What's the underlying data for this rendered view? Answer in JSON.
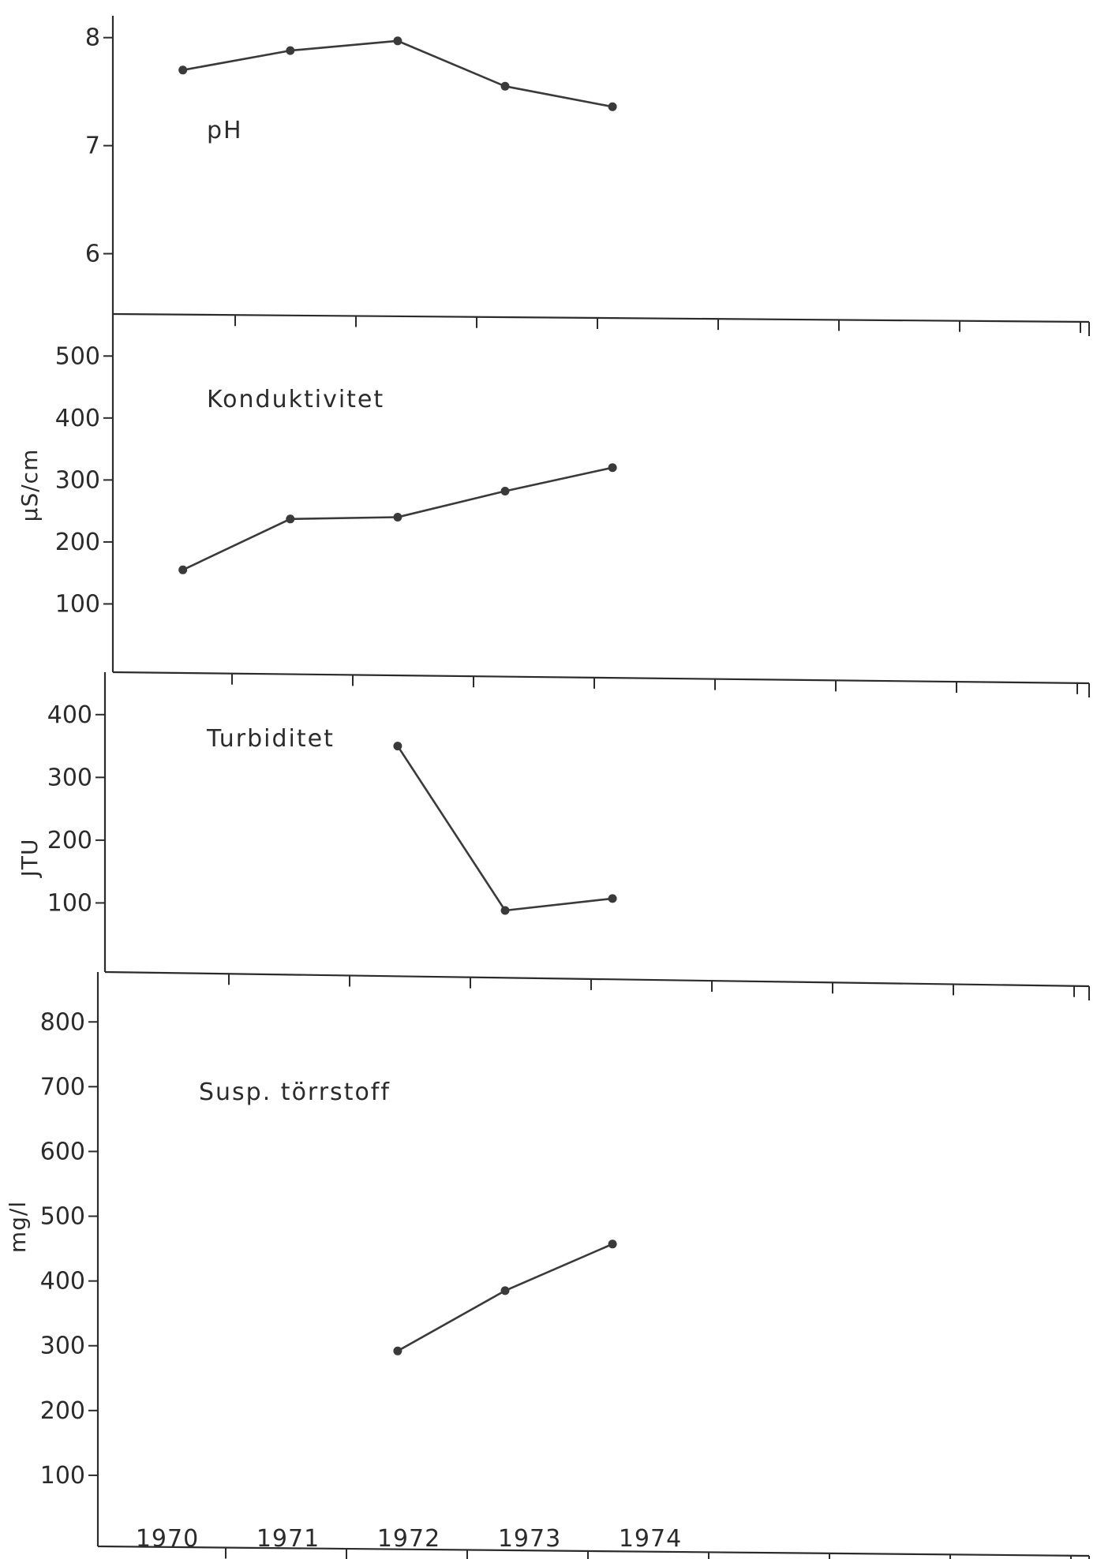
{
  "chart_data": [
    {
      "type": "line",
      "title": "pH",
      "ylabel": "",
      "yticks": [
        6,
        7,
        8
      ],
      "ylim": [
        5.5,
        8.1
      ],
      "x": [
        1970.1,
        1971.1,
        1972.1,
        1973.1,
        1974.1
      ],
      "series": [
        {
          "values": [
            7.7,
            7.88,
            7.97,
            7.55,
            7.36
          ]
        }
      ]
    },
    {
      "type": "line",
      "title": "Konduktivitet",
      "ylabel": "µS/cm",
      "yticks": [
        100,
        200,
        300,
        400,
        500
      ],
      "ylim": [
        0,
        550
      ],
      "x": [
        1970.1,
        1971.1,
        1972.1,
        1973.1,
        1974.1
      ],
      "series": [
        {
          "values": [
            155,
            237,
            240,
            282,
            320
          ]
        }
      ]
    },
    {
      "type": "line",
      "title": "Turbiditet",
      "ylabel": "JTU",
      "yticks": [
        100,
        200,
        300,
        400
      ],
      "ylim": [
        0,
        450
      ],
      "x": [
        1972.1,
        1973.1,
        1974.1
      ],
      "series": [
        {
          "values": [
            350,
            88,
            107
          ]
        }
      ]
    },
    {
      "type": "line",
      "title": "Susp. törrstoff",
      "ylabel": "mg/l",
      "yticks": [
        100,
        200,
        300,
        400,
        500,
        600,
        700,
        800
      ],
      "ylim": [
        0,
        860
      ],
      "x": [
        1972.1,
        1973.1,
        1974.1
      ],
      "series": [
        {
          "values": [
            292,
            385,
            457
          ]
        }
      ]
    }
  ],
  "x_axis": {
    "xlim": [
      1969.5,
      1978.5
    ],
    "year_labels": [
      "1970",
      "1971",
      "1972",
      "1973",
      "1974"
    ]
  }
}
